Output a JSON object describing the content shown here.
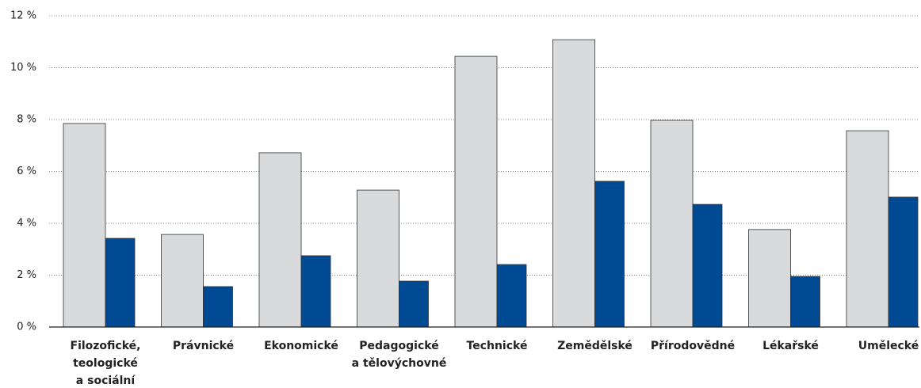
{
  "chart_data": {
    "type": "bar",
    "categories": [
      [
        "Filozofické,",
        "teologické",
        "a sociální"
      ],
      [
        "Právnické"
      ],
      [
        "Ekonomické"
      ],
      [
        "Pedagogické",
        "a tělovýchovné"
      ],
      [
        "Technické"
      ],
      [
        "Zemědělské"
      ],
      [
        "Přírodovědné"
      ],
      [
        "Lékařské"
      ],
      [
        "Umělecké"
      ]
    ],
    "series": [
      {
        "color": "#d9dadb",
        "values": [
          7.85,
          3.57,
          6.72,
          5.28,
          10.44,
          11.08,
          7.97,
          3.76,
          7.57
        ]
      },
      {
        "color": "#004a93",
        "values": [
          3.42,
          1.56,
          2.75,
          1.77,
          2.41,
          5.62,
          4.73,
          1.95,
          5.01
        ]
      }
    ],
    "ylim": [
      0,
      12
    ],
    "yticks": [
      {
        "value": 0,
        "label": "0 %"
      },
      {
        "value": 2,
        "label": "2 %"
      },
      {
        "value": 4,
        "label": "4 %"
      },
      {
        "value": 6,
        "label": "6 %"
      },
      {
        "value": 8,
        "label": "8 %"
      },
      {
        "value": 10,
        "label": "10 %"
      },
      {
        "value": 12,
        "label": "12 %"
      }
    ],
    "grid": true
  }
}
